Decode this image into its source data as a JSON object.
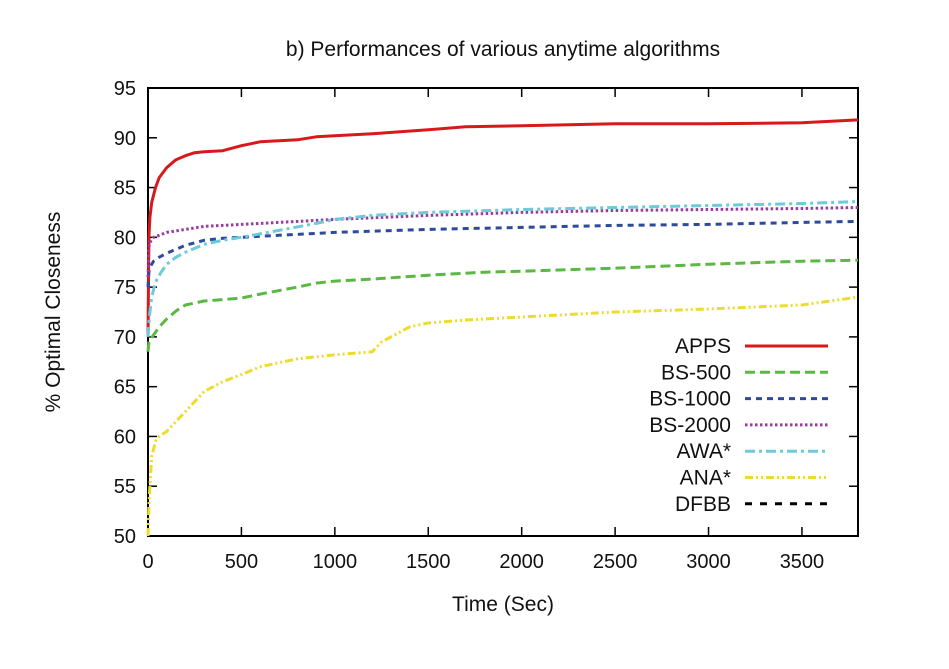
{
  "chart_data": {
    "type": "line",
    "title": "b) Performances of various anytime algorithms",
    "xlabel": "Time (Sec)",
    "ylabel": "% Optimal Closeness",
    "xlim": [
      0,
      3800
    ],
    "ylim": [
      50,
      95
    ],
    "xticks": [
      0,
      500,
      1000,
      1500,
      2000,
      2500,
      3000,
      3500
    ],
    "yticks": [
      50,
      55,
      60,
      65,
      70,
      75,
      80,
      85,
      90,
      95
    ],
    "grid": false,
    "legend_position": "bottom-right",
    "series": [
      {
        "name": "APPS",
        "color": "#d7191c",
        "dash": "solid",
        "x": [
          0,
          5,
          10,
          20,
          40,
          60,
          100,
          150,
          200,
          250,
          300,
          400,
          500,
          600,
          800,
          900,
          1000,
          1200,
          1500,
          1700,
          2000,
          2500,
          3000,
          3500,
          3800
        ],
        "y": [
          70,
          80,
          82,
          83.5,
          85,
          86,
          87,
          87.8,
          88.2,
          88.5,
          88.6,
          88.7,
          89.2,
          89.6,
          89.8,
          90.1,
          90.2,
          90.4,
          90.8,
          91.1,
          91.2,
          91.4,
          91.4,
          91.5,
          91.8
        ]
      },
      {
        "name": "BS-500",
        "color": "#5ab843",
        "dash": "long-dash",
        "x": [
          0,
          5,
          10,
          30,
          60,
          100,
          150,
          200,
          300,
          500,
          600,
          800,
          900,
          1000,
          1200,
          1500,
          1800,
          2000,
          2500,
          3000,
          3500,
          3800
        ],
        "y": [
          68.5,
          69.5,
          69.7,
          70.2,
          71,
          71.8,
          72.6,
          73.2,
          73.6,
          73.9,
          74.3,
          75,
          75.4,
          75.6,
          75.8,
          76.2,
          76.5,
          76.6,
          76.9,
          77.3,
          77.6,
          77.7
        ]
      },
      {
        "name": "BS-1000",
        "color": "#2e4a9c",
        "dash": "short-dash",
        "x": [
          0,
          5,
          10,
          30,
          60,
          100,
          150,
          200,
          300,
          400,
          500,
          700,
          900,
          1000,
          1500,
          2000,
          2500,
          3000,
          3500,
          3800
        ],
        "y": [
          75,
          76.5,
          77,
          77.6,
          78,
          78.4,
          78.8,
          79.2,
          79.7,
          79.9,
          80,
          80.2,
          80.4,
          80.5,
          80.8,
          81,
          81.2,
          81.3,
          81.5,
          81.6
        ]
      },
      {
        "name": "BS-2000",
        "color": "#9a3c9e",
        "dash": "dotted",
        "x": [
          0,
          5,
          10,
          30,
          60,
          100,
          200,
          300,
          500,
          700,
          1000,
          1500,
          2000,
          2500,
          3000,
          3500,
          3800
        ],
        "y": [
          76,
          79,
          79.5,
          80,
          80.2,
          80.5,
          80.8,
          81.1,
          81.3,
          81.5,
          81.8,
          82.2,
          82.5,
          82.7,
          82.8,
          82.9,
          83
        ]
      },
      {
        "name": "AWA*",
        "color": "#6ccbd9",
        "dash": "dash-dot",
        "x": [
          0,
          5,
          10,
          20,
          40,
          70,
          100,
          150,
          200,
          300,
          400,
          500,
          700,
          900,
          1000,
          1200,
          1500,
          2000,
          2500,
          3000,
          3500,
          3800
        ],
        "y": [
          70,
          71.5,
          72.5,
          74,
          75.5,
          76.5,
          77.3,
          78,
          78.5,
          79.3,
          79.7,
          80,
          80.7,
          81.4,
          81.8,
          82.2,
          82.5,
          82.8,
          83,
          83.2,
          83.4,
          83.6
        ]
      },
      {
        "name": "ANA*",
        "color": "#eddc2c",
        "dash": "dash-dot-dot",
        "x": [
          0,
          5,
          10,
          20,
          40,
          60,
          100,
          150,
          200,
          250,
          300,
          400,
          500,
          600,
          800,
          1000,
          1200,
          1250,
          1300,
          1400,
          1500,
          1700,
          2000,
          2500,
          3000,
          3500,
          3800
        ],
        "y": [
          50,
          53,
          55,
          58,
          59.5,
          60,
          60.5,
          61.5,
          62.5,
          63.5,
          64.5,
          65.5,
          66.2,
          67,
          67.8,
          68.2,
          68.5,
          69.5,
          70,
          71,
          71.4,
          71.7,
          72,
          72.5,
          72.8,
          73.2,
          74
        ]
      },
      {
        "name": "DFBB",
        "color": "#000000",
        "dash": "dash",
        "x": [],
        "y": []
      }
    ]
  }
}
